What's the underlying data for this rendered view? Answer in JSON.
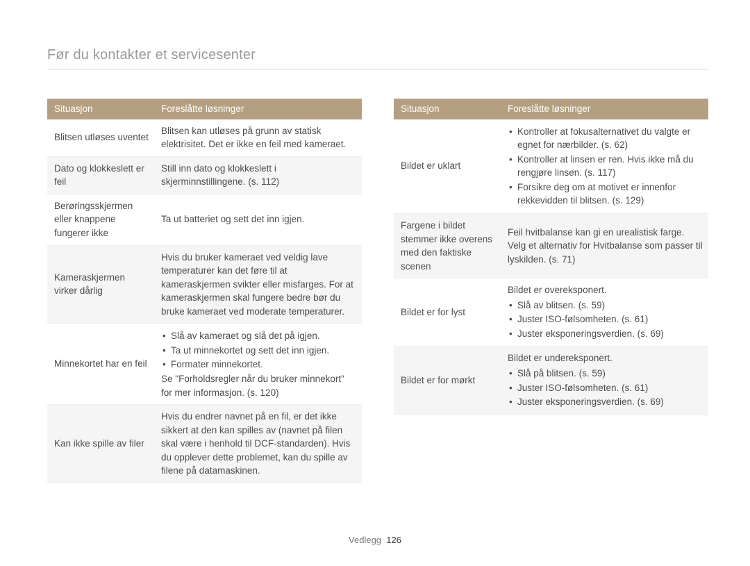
{
  "title": "Før du kontakter et servicesenter",
  "headers": {
    "situasjon": "Situasjon",
    "losninger": "Foreslåtte løsninger"
  },
  "footer": {
    "label": "Vedlegg",
    "page": "126"
  },
  "left": [
    {
      "shade": false,
      "sit": "Blitsen utløses uventet",
      "sol": {
        "text": "Blitsen kan utløses på grunn av statisk elektrisitet. Det er ikke en feil med kameraet."
      }
    },
    {
      "shade": true,
      "sit": "Dato og klokkeslett er feil",
      "sol": {
        "text": "Still inn dato og klokkeslett i skjerminnstillingene. (s. 112)"
      }
    },
    {
      "shade": false,
      "sit": "Berøringsskjermen eller knappene fungerer ikke",
      "sol": {
        "text": "Ta ut batteriet og sett det inn igjen."
      }
    },
    {
      "shade": true,
      "sit": "Kameraskjermen virker dårlig",
      "sol": {
        "text": "Hvis du bruker kameraet ved veldig lave temperaturer kan det føre til at kameraskjermen svikter eller misfarges. For at kameraskjermen skal fungere bedre bør du bruke kameraet ved moderate temperaturer."
      }
    },
    {
      "shade": false,
      "sit": "Minnekortet har en feil",
      "sol": {
        "bullets": [
          "Slå av kameraet og slå det på igjen.",
          "Ta ut minnekortet og sett det inn igjen.",
          "Formater minnekortet."
        ],
        "post": "Se \"Forholdsregler når du bruker minnekort\" for mer informasjon. (s. 120)"
      }
    },
    {
      "shade": true,
      "sit": "Kan ikke spille av filer",
      "sol": {
        "text": "Hvis du endrer navnet på en fil, er det ikke sikkert at den kan spilles av (navnet på filen skal være i henhold til DCF-standarden). Hvis du opplever dette problemet, kan du spille av filene på datamaskinen."
      }
    }
  ],
  "right": [
    {
      "shade": false,
      "sit": "Bildet er uklart",
      "sol": {
        "bullets": [
          "Kontroller at fokusalternativet du valgte er egnet for nærbilder. (s. 62)",
          "Kontroller at linsen er ren. Hvis ikke må du rengjøre linsen. (s. 117)",
          "Forsikre deg om at motivet er innenfor rekkevidden til blitsen. (s. 129)"
        ]
      }
    },
    {
      "shade": true,
      "sit": "Fargene i bildet stemmer ikke overens med den faktiske scenen",
      "sol": {
        "text": "Feil hvitbalanse kan gi en urealistisk farge. Velg et alternativ for Hvitbalanse som passer til lyskilden. (s. 71)"
      }
    },
    {
      "shade": false,
      "sit": "Bildet er for lyst",
      "sol": {
        "pre": "Bildet er overeksponert.",
        "bullets": [
          "Slå av blitsen. (s. 59)",
          "Juster ISO-følsomheten. (s. 61)",
          "Juster eksponeringsverdien. (s. 69)"
        ]
      }
    },
    {
      "shade": true,
      "sit": "Bildet er for mørkt",
      "sol": {
        "pre": "Bildet er undereksponert.",
        "bullets": [
          "Slå på blitsen. (s. 59)",
          "Juster ISO-følsomheten. (s. 61)",
          "Juster eksponeringsverdien. (s. 69)"
        ]
      }
    }
  ]
}
